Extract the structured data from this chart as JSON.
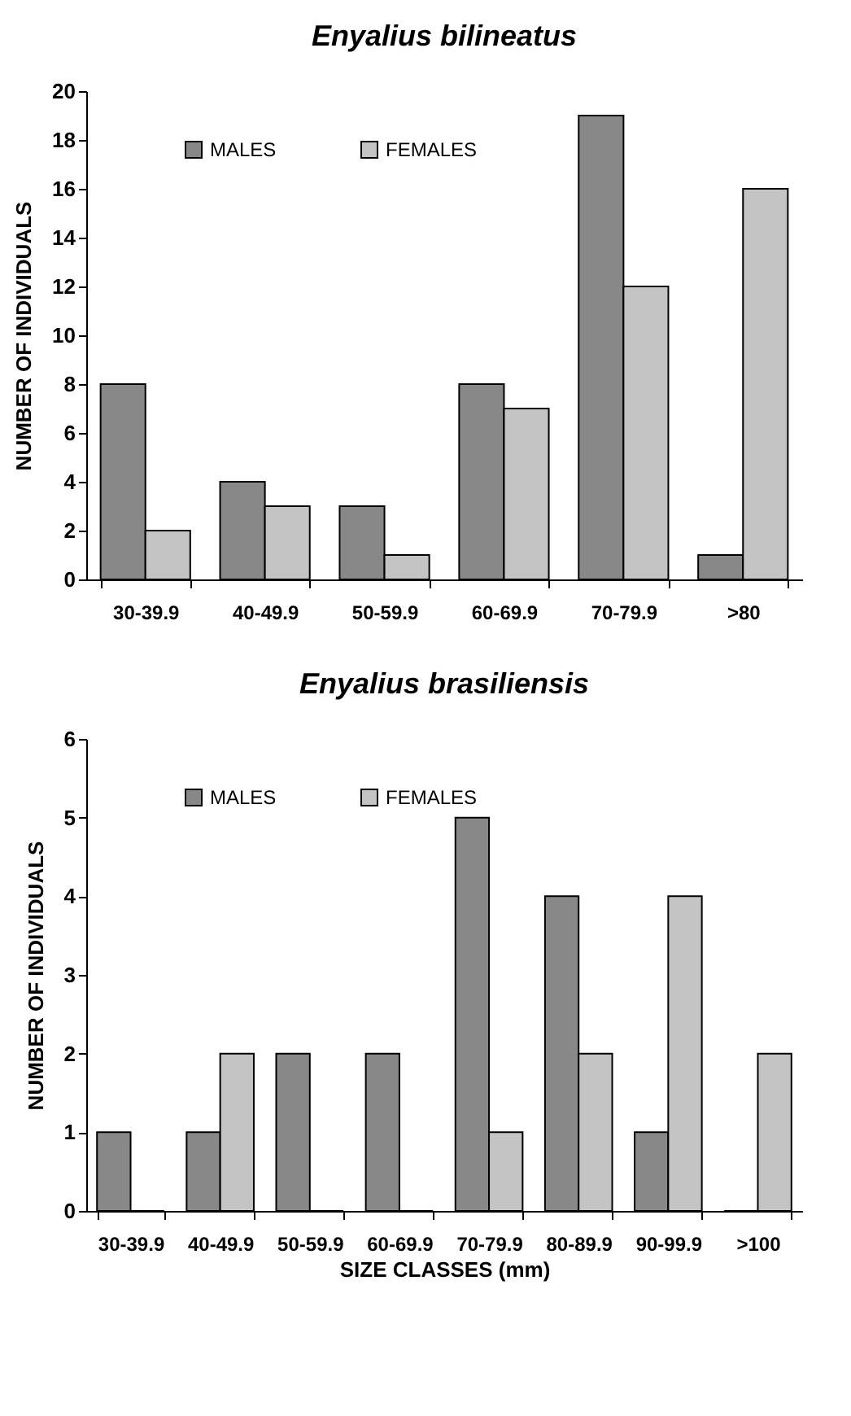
{
  "chart_data": [
    {
      "type": "bar",
      "title": "Enyalius bilineatus",
      "ylabel": "NUMBER OF INDIVIDUALS",
      "categories": [
        "30-39.9",
        "40-49.9",
        "50-59.9",
        "60-69.9",
        "70-79.9",
        ">80"
      ],
      "series": [
        {
          "name": "MALES",
          "color": "#888888",
          "values": [
            8,
            4,
            3,
            8,
            19,
            1
          ]
        },
        {
          "name": "FEMALES",
          "color": "#c4c4c4",
          "values": [
            2,
            3,
            1,
            7,
            12,
            16
          ]
        }
      ],
      "ylim": [
        0,
        20
      ],
      "yticks": [
        0,
        2,
        4,
        6,
        8,
        10,
        12,
        14,
        16,
        18,
        20
      ],
      "legend": "top left"
    },
    {
      "type": "bar",
      "title": "Enyalius brasiliensis",
      "xlabel": "SIZE CLASSES (mm)",
      "ylabel": "NUMBER OF INDIVIDUALS",
      "categories": [
        "30-39.9",
        "40-49.9",
        "50-59.9",
        "60-69.9",
        "70-79.9",
        "80-89.9",
        "90-99.9",
        ">100"
      ],
      "series": [
        {
          "name": "MALES",
          "color": "#888888",
          "values": [
            1,
            1,
            2,
            2,
            5,
            4,
            1,
            0
          ]
        },
        {
          "name": "FEMALES",
          "color": "#c4c4c4",
          "values": [
            0,
            2,
            0,
            0,
            1,
            2,
            4,
            2
          ]
        }
      ],
      "ylim": [
        0,
        6
      ],
      "yticks": [
        0,
        1,
        2,
        3,
        4,
        5,
        6
      ],
      "legend": "top left"
    }
  ]
}
